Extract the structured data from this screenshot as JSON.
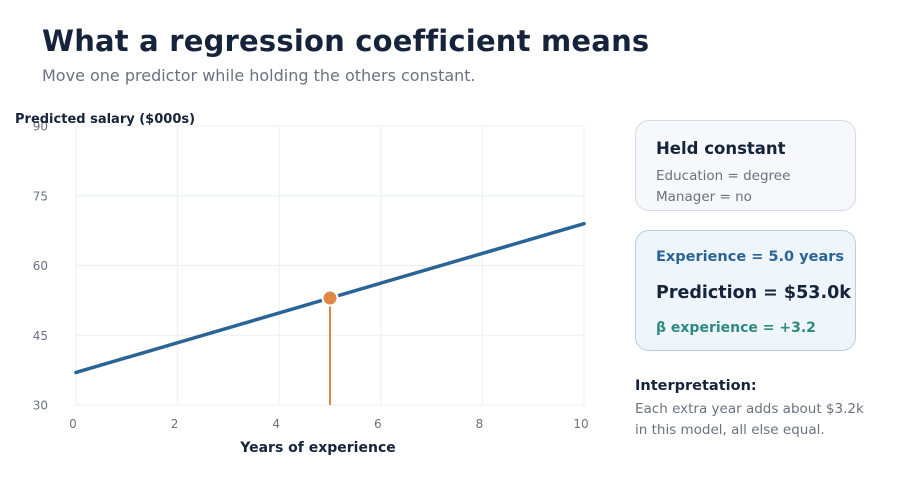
{
  "header": {
    "title": "What a regression coefficient means",
    "subtitle": "Move one predictor while holding the others constant."
  },
  "chart_data": {
    "type": "line",
    "ylabel": "Predicted salary ($000s)",
    "xlabel": "Years of experience",
    "xlim": [
      0,
      10
    ],
    "ylim": [
      30,
      90
    ],
    "xticks": [
      0,
      2,
      4,
      6,
      8,
      10
    ],
    "yticks": [
      30,
      45,
      60,
      75,
      90
    ],
    "grid": true,
    "series": [
      {
        "x": [
          0,
          10
        ],
        "y": [
          37,
          69
        ],
        "color": "#2a6496"
      }
    ],
    "marker": {
      "x": 5,
      "y": 53,
      "color": "#dd8844"
    }
  },
  "held_card": {
    "heading": "Held constant",
    "line1": "Education = degree",
    "line2": "Manager = no"
  },
  "prediction_card": {
    "experience": "Experience = 5.0 years",
    "prediction": "Prediction = $53.0k",
    "beta": "β experience = +3.2"
  },
  "interpretation": {
    "heading": "Interpretation:",
    "line1": "Each extra year adds about $3.2k",
    "line2": "in this model, all else equal."
  }
}
